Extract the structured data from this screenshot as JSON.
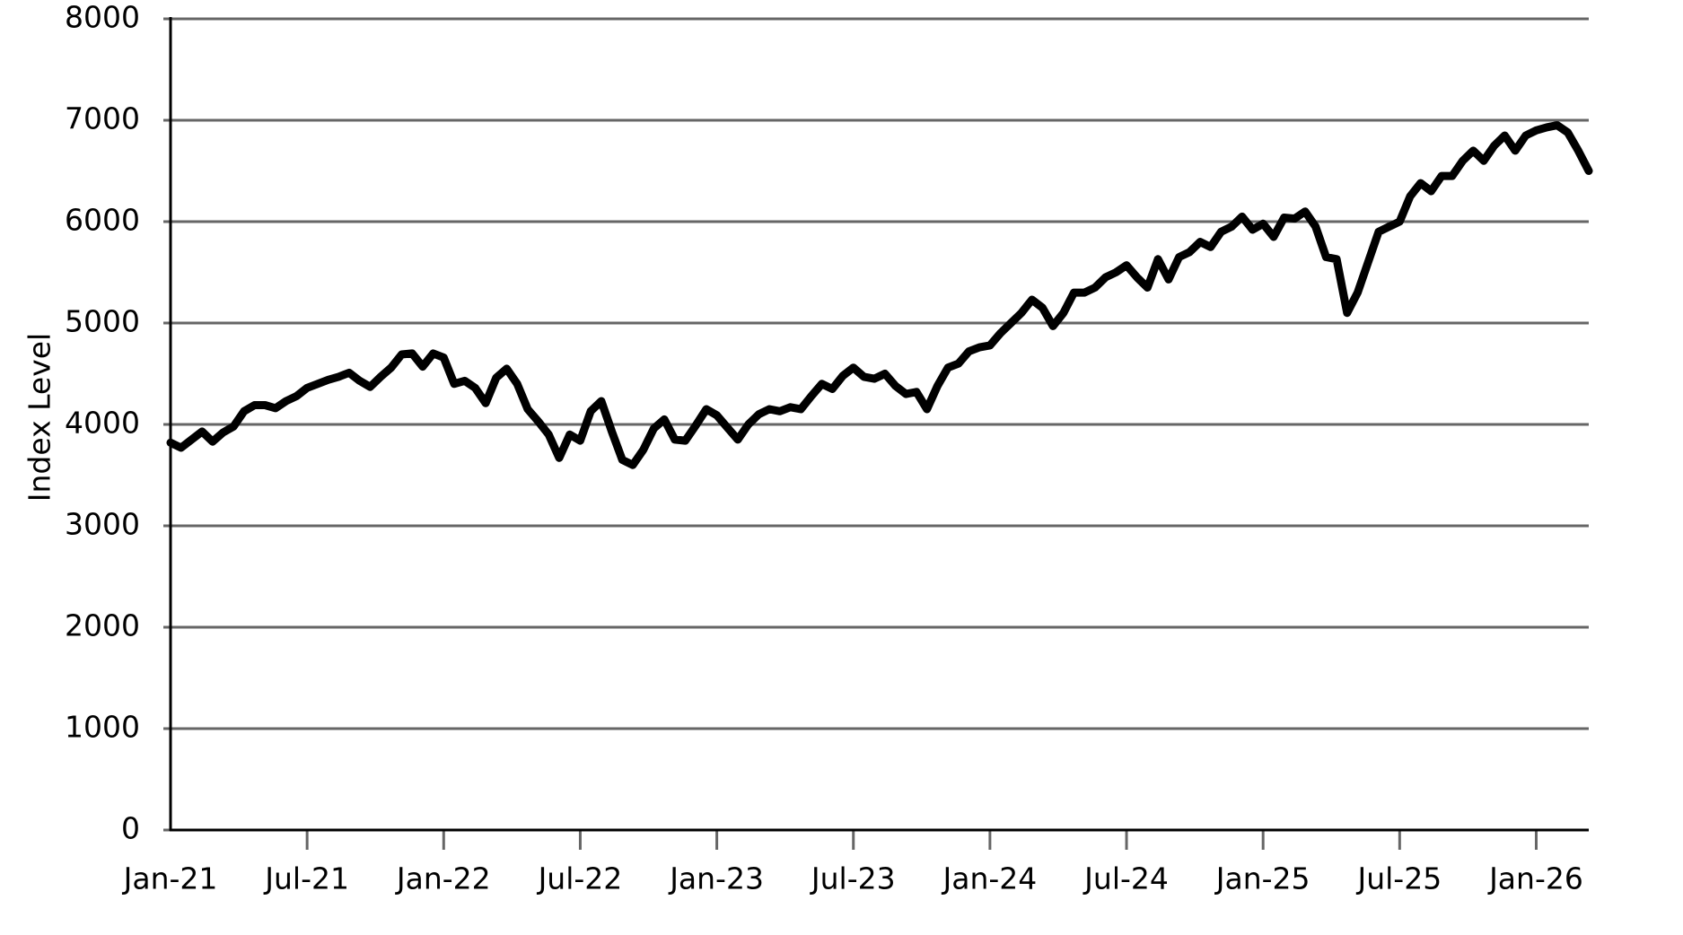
{
  "chart_data": {
    "type": "line",
    "y_label": "Index Level",
    "categories": [
      "Jan-21",
      null,
      null,
      null,
      null,
      null,
      null,
      null,
      null,
      null,
      null,
      null,
      null,
      "Jul-21",
      null,
      null,
      null,
      null,
      null,
      null,
      null,
      null,
      null,
      null,
      null,
      null,
      "Jan-22",
      null,
      null,
      null,
      null,
      null,
      null,
      null,
      null,
      null,
      null,
      null,
      null,
      "Jul-22",
      null,
      null,
      null,
      null,
      null,
      null,
      null,
      null,
      null,
      null,
      null,
      null,
      "Jan-23",
      null,
      null,
      null,
      null,
      null,
      null,
      null,
      null,
      null,
      null,
      null,
      null,
      "Jul-23",
      null,
      null,
      null,
      null,
      null,
      null,
      null,
      null,
      null,
      null,
      null,
      null,
      "Jan-24",
      null,
      null,
      null,
      null,
      null,
      null,
      null,
      null,
      null,
      null,
      null,
      null,
      "Jul-24",
      null,
      null,
      null,
      null,
      null,
      null,
      null,
      null,
      null,
      null,
      null,
      null,
      "Jan-25",
      null,
      null,
      null,
      null,
      null,
      null,
      null,
      null,
      null,
      null,
      null,
      null,
      "Jul-25",
      null,
      null,
      null,
      null,
      null,
      null,
      null,
      null,
      null,
      null,
      null,
      null,
      "Jan-26",
      null,
      null,
      null,
      null,
      null
    ],
    "values": [
      3820,
      3770,
      3850,
      3930,
      3830,
      3920,
      3980,
      4130,
      4190,
      4190,
      4160,
      4230,
      4280,
      4360,
      4400,
      4440,
      4470,
      4510,
      4430,
      4370,
      4470,
      4560,
      4690,
      4700,
      4570,
      4700,
      4660,
      4400,
      4430,
      4360,
      4210,
      4460,
      4550,
      4400,
      4150,
      4030,
      3900,
      3670,
      3900,
      3840,
      4130,
      4230,
      3930,
      3650,
      3600,
      3750,
      3960,
      4050,
      3850,
      3840,
      3990,
      4150,
      4090,
      3970,
      3850,
      4000,
      4100,
      4150,
      4130,
      4170,
      4150,
      4280,
      4400,
      4350,
      4480,
      4560,
      4470,
      4450,
      4500,
      4380,
      4300,
      4320,
      4150,
      4380,
      4560,
      4600,
      4720,
      4760,
      4780,
      4900,
      5000,
      5100,
      5230,
      5150,
      4970,
      5100,
      5300,
      5300,
      5350,
      5450,
      5500,
      5570,
      5450,
      5350,
      5630,
      5430,
      5650,
      5700,
      5800,
      5750,
      5900,
      5950,
      6050,
      5920,
      5980,
      5850,
      6040,
      6030,
      6100,
      5950,
      5650,
      5630,
      5100,
      5300,
      5600,
      5900,
      5950,
      6000,
      6250,
      6380,
      6300,
      6450,
      6450,
      6600,
      6700,
      6600,
      6750,
      6850,
      6700,
      6850,
      6900,
      6930,
      6950,
      6880,
      6700,
      6500
    ],
    "color": "#000000",
    "ylim": [
      0,
      8000
    ],
    "yticks": [
      0,
      1000,
      2000,
      3000,
      4000,
      5000,
      6000,
      7000,
      8000
    ],
    "grid": true
  }
}
